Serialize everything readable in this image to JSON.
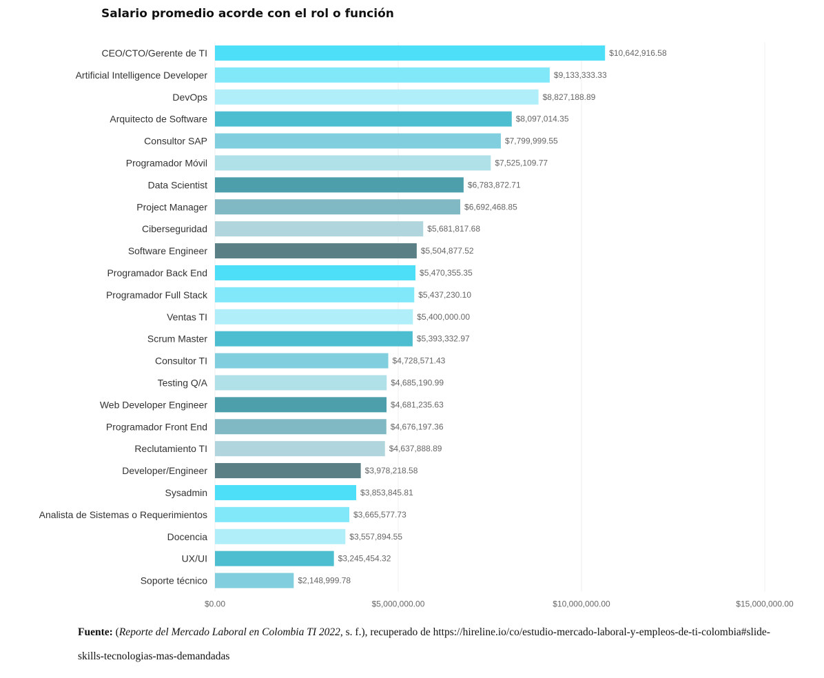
{
  "title": "Salario promedio acorde con el rol o función",
  "chart_data": {
    "type": "bar",
    "orientation": "horizontal",
    "categories": [
      "CEO/CTO/Gerente de TI",
      "Artificial Intelligence Developer",
      "DevOps",
      "Arquitecto de Software",
      "Consultor SAP",
      "Programador Móvil",
      "Data Scientist",
      "Project Manager",
      "Ciberseguridad",
      "Software Engineer",
      "Programador Back End",
      "Programador Full Stack",
      "Ventas TI",
      "Scrum Master",
      "Consultor TI",
      "Testing Q/A",
      "Web Developer Engineer",
      "Programador Front End",
      "Reclutamiento TI",
      "Developer/Engineer",
      "Sysadmin",
      "Analista de Sistemas o Requerimientos",
      "Docencia",
      "UX/UI",
      "Soporte técnico"
    ],
    "values": [
      10642916.58,
      9133333.33,
      8827188.89,
      8097014.35,
      7799999.55,
      7525109.77,
      6783872.71,
      6692468.85,
      5681817.68,
      5504877.52,
      5470355.35,
      5437230.1,
      5400000.0,
      5393332.97,
      4728571.43,
      4685190.99,
      4681235.63,
      4676197.36,
      4637888.89,
      3978218.58,
      3853845.81,
      3665577.73,
      3557894.55,
      3245454.32,
      2148999.78
    ],
    "value_labels": [
      "$10,642,916.58",
      "$9,133,333.33",
      "$8,827,188.89",
      "$8,097,014.35",
      "$7,799,999.55",
      "$7,525,109.77",
      "$6,783,872.71",
      "$6,692,468.85",
      "$5,681,817.68",
      "$5,504,877.52",
      "$5,470,355.35",
      "$5,437,230.10",
      "$5,400,000.00",
      "$5,393,332.97",
      "$4,728,571.43",
      "$4,685,190.99",
      "$4,681,235.63",
      "$4,676,197.36",
      "$4,637,888.89",
      "$3,978,218.58",
      "$3,853,845.81",
      "$3,665,577.73",
      "$3,557,894.55",
      "$3,245,454.32",
      "$2,148,999.78"
    ],
    "xlim": [
      0,
      15000000
    ],
    "xticks": [
      0,
      5000000,
      10000000,
      15000000
    ],
    "xtick_labels": [
      "$0.00",
      "$5,000,000.00",
      "$10,000,000.00",
      "$15,000,000.00"
    ],
    "grid": "vertical",
    "colors": [
      "#4ddff7",
      "#80e8f8",
      "#b0eff9",
      "#4dbdd0",
      "#80cede",
      "#b0e0e8",
      "#4d9fac",
      "#80b9c3",
      "#b0d5dc",
      "#5a7f85"
    ]
  },
  "source": {
    "label": "Fuente:",
    "open_paren": " (",
    "citation": "Reporte del Mercado Laboral en Colombia TI 2022",
    "rest": ", s. f.), recuperado de https://hireline.io/co/estudio-mercado-laboral-y-empleos-de-ti-colombia#slide-skills-tecnologias-mas-demandadas"
  }
}
